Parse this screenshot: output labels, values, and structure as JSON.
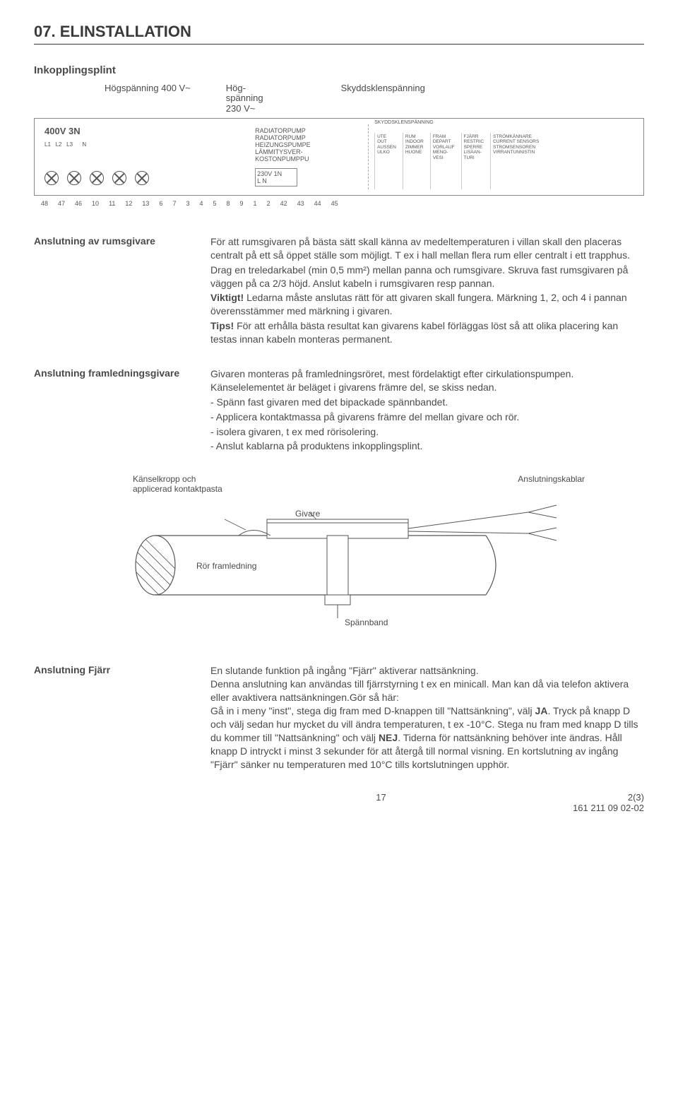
{
  "section": {
    "number": "07.",
    "title": "ELINSTALLATION"
  },
  "inkopplings": "Inkopplingsplint",
  "topLabels": {
    "left": "Högspänning 400 V~",
    "midTop": "Hög-",
    "midMid": "spänning",
    "midBot": "230 V~",
    "right": "Skyddsklenspänning"
  },
  "diagram": {
    "voltageLabel": "400V 3N",
    "col1": [
      "RADIATORPUMP",
      "RADIATORPUMP",
      "HEIZUNGSPUMPE",
      "LÄMMITYSVER-",
      "KOSTONPUMPPU"
    ],
    "col1b": [
      "230V 1N",
      "L    N"
    ],
    "col2header": "SKYDDSKLENSPÄNNING",
    "col2": [
      "UTE",
      "OUT",
      "AUSSEN",
      "ULKO"
    ],
    "col3": [
      "RUM",
      "INDOOR",
      "ZIMMER",
      "HUONE"
    ],
    "col4": [
      "FRAM",
      "DEPART",
      "VORLAUF",
      "MENO-",
      "VESI"
    ],
    "col5": [
      "FJÄRR",
      "RESTRIC",
      "SPERRE",
      "LISÄAN-",
      "TURI"
    ],
    "col6": [
      "STRÖMKÄNNARE",
      "CURRENT SENSORS",
      "STROMSENSOREN",
      "VIRRANTUNNISTIN"
    ],
    "numbers": [
      "48",
      "47",
      "46",
      "10",
      "11",
      "12",
      "13",
      "6",
      "7",
      "3",
      "4",
      "5",
      "8",
      "9",
      "1",
      "2",
      "42",
      "43",
      "44",
      "45"
    ]
  },
  "sections": [
    {
      "label": "Anslutning av rumsgivare",
      "paragraphs": [
        "För att rumsgivaren på bästa sätt skall känna av medeltemperaturen i villan skall den placeras centralt på ett så öppet ställe som möjligt. T ex i hall mellan flera rum eller centralt i ett trapphus.",
        "Drag en treledarkabel (min 0,5 mm²) mellan panna och rumsgivare. Skruva fast rumsgivaren på väggen på ca 2/3 höjd. Anslut kabeln i rumsgivaren resp pannan.",
        "<b>Viktigt!</b> Ledarna måste anslutas rätt för att givaren skall fungera. Märkning 1, 2, och 4 i pannan överensstämmer med märkning i givaren.",
        "<b>Tips!</b> För att erhålla bästa resultat kan givarens kabel förläggas löst så att olika placering kan testas innan kabeln monteras permanent."
      ]
    },
    {
      "label": "Anslutning framledningsgivare",
      "paragraphs": [
        "Givaren monteras på framledningsröret, mest fördelaktigt efter cirkulationspumpen. Känselelementet är beläget i givarens främre del, se skiss nedan.",
        "- Spänn fast givaren med det bipackade spännbandet.",
        "- Applicera kontaktmassa på givarens främre del mellan givare och rör.",
        "- isolera givaren, t ex med rörisolering.",
        "- Anslut kablarna på produktens inkopplingsplint."
      ]
    }
  ],
  "sensorDiagram": {
    "topLeft1": "Känselkropp och",
    "topLeft2": "applicerad kontaktpasta",
    "topRight": "Anslutningskablar",
    "givare": "Givare",
    "ror": "Rör framledning",
    "spannband": "Spännband"
  },
  "fjarr": {
    "label": "Anslutning Fjärr",
    "text": "En slutande funktion på ingång \"Fjärr\" aktiverar nattsänkning.\nDenna anslutning kan användas till fjärrstyrning t ex en minicall. Man kan då via telefon aktivera eller avaktivera nattsänkningen.Gör så här:\nGå in i meny \"inst\", stega dig fram med D-knappen till \"Nattsänkning\", välj <b>JA</b>. Tryck på knapp D och välj sedan hur mycket du vill ändra temperaturen, t ex -10°C. Stega nu fram med knapp D tills du kommer till \"Nattsänkning\" och välj <b>NEJ</b>. Tiderna för nattsänkning behöver inte ändras. Håll knapp D intryckt i minst 3 sekunder för att återgå till normal visning. En kortslutning av ingång \"Fjärr\" sänker nu temperaturen med 10°C tills kortslutningen upphör."
  },
  "footer": {
    "pageNum": "17",
    "sheet": "2(3)",
    "docNum": "161 211 09 02-02"
  },
  "colors": {
    "text": "#4a4a4a",
    "line": "#555555",
    "bg": "#ffffff"
  }
}
